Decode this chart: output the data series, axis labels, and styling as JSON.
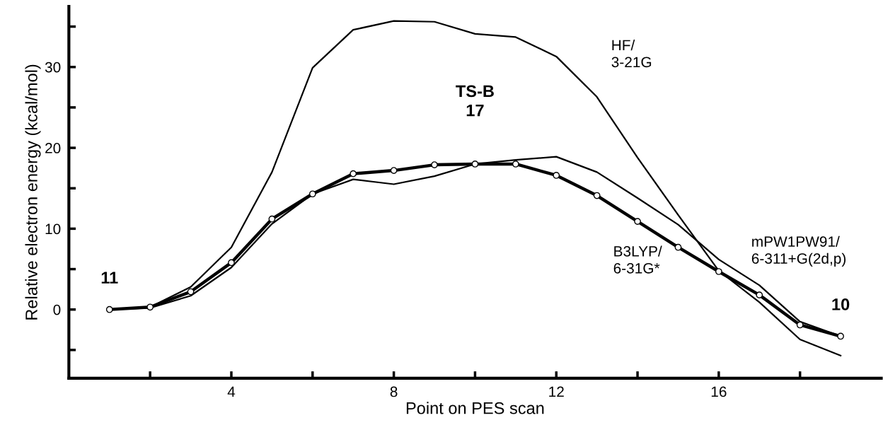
{
  "chart_data": {
    "type": "line",
    "xlabel": "Point on PES scan",
    "ylabel": "Relative electron energy (kcal/mol)",
    "x": [
      1,
      2,
      3,
      4,
      5,
      6,
      7,
      8,
      9,
      10,
      11,
      12,
      13,
      14,
      15,
      16,
      17,
      18,
      19
    ],
    "xlim": [
      0,
      20
    ],
    "ylim": [
      -8.5,
      37.5
    ],
    "xticks": [
      {
        "value": 2,
        "label": null
      },
      4,
      {
        "value": 6,
        "label": null
      },
      8,
      {
        "value": 10,
        "label": null
      },
      12,
      {
        "value": 14,
        "label": null
      },
      16,
      {
        "value": 18,
        "label": null
      }
    ],
    "yticks": [
      {
        "value": -5,
        "label": null
      },
      0,
      {
        "value": 5,
        "label": null
      },
      10,
      {
        "value": 15,
        "label": null
      },
      20,
      {
        "value": 25,
        "label": null
      },
      30,
      {
        "value": 35,
        "label": null
      }
    ],
    "grid": false,
    "legend": false,
    "series": [
      {
        "name": "HF/\n3-21G",
        "color": "#000000",
        "marker": "none",
        "values": [
          0,
          0.3,
          2.8,
          7.7,
          17.0,
          29.9,
          34.6,
          35.7,
          35.6,
          34.1,
          33.7,
          31.3,
          26.3,
          18.8,
          11.7,
          4.8,
          0.9,
          -3.7,
          -5.7
        ]
      },
      {
        "name": "mPW1PW91/\n6-311+G(2d,p)",
        "color": "#000000",
        "marker": "none",
        "values": [
          0,
          0.2,
          1.7,
          5.2,
          10.6,
          14.3,
          16.1,
          15.5,
          16.5,
          18.0,
          18.5,
          18.9,
          17.0,
          13.8,
          10.5,
          6.2,
          3.0,
          -1.5,
          -3.3
        ]
      },
      {
        "name": "B3LYP/\n6-31G*",
        "color": "#000000",
        "marker": "circle",
        "values": [
          0,
          0.3,
          2.2,
          5.8,
          11.2,
          14.3,
          16.8,
          17.2,
          17.9,
          18.0,
          18.0,
          16.6,
          14.1,
          10.9,
          7.7,
          4.7,
          1.8,
          -1.9,
          -3.3
        ]
      }
    ],
    "annotations": [
      {
        "text": "11",
        "x": 1,
        "y": 0
      },
      {
        "text": "TS-B\n17",
        "x": 10,
        "y": 18.0
      },
      {
        "text": "10",
        "x": 19,
        "y": -3.3
      }
    ]
  }
}
